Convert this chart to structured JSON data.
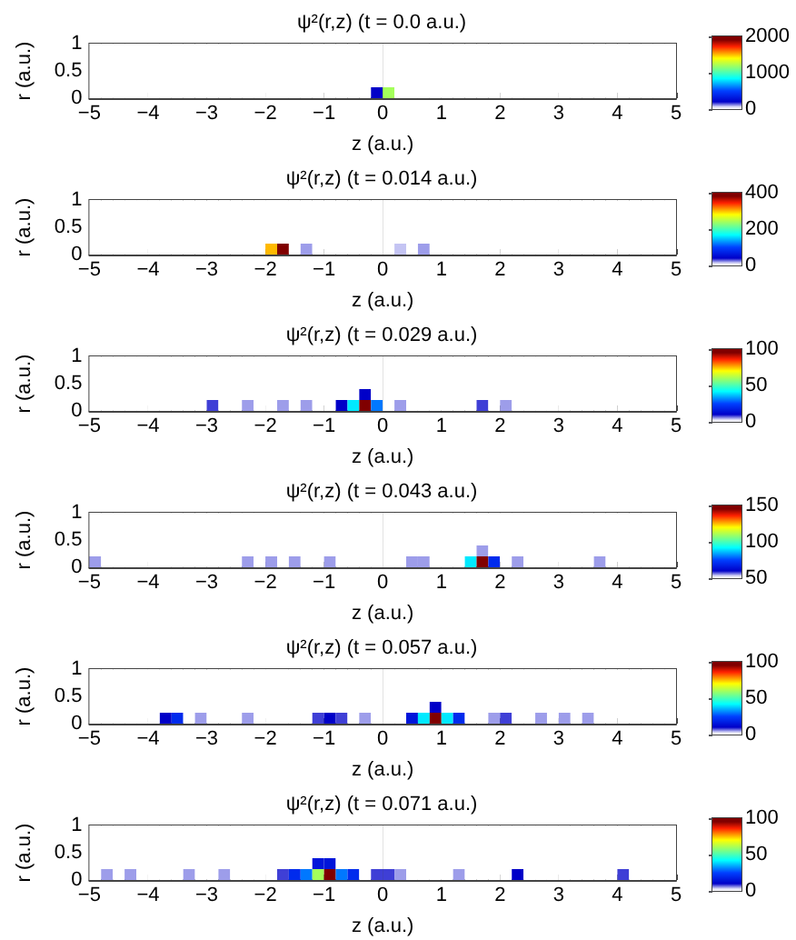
{
  "chart_data": [
    {
      "type": "heatmap",
      "title": "ψ²(r,z) (t = 0.0 a.u.)",
      "xlabel": "z (a.u.)",
      "ylabel": "r (a.u.)",
      "xlim": [
        -5,
        5
      ],
      "ylim": [
        0,
        1
      ],
      "xticks": [
        -5,
        -4,
        -3,
        -2,
        -1,
        0,
        1,
        2,
        3,
        4,
        5
      ],
      "yticks": [
        0,
        0.5,
        1
      ],
      "clim": [
        0,
        2000
      ],
      "cticks": [
        0,
        1000,
        2000
      ],
      "cells": [
        [
          0,
          0,
          0,
          0,
          0,
          0,
          0,
          0,
          0,
          0,
          0,
          0,
          0,
          0,
          0,
          0,
          0,
          0,
          0,
          0,
          0,
          0,
          0,
          0,
          0,
          0,
          0,
          0,
          0,
          0,
          0,
          0,
          0,
          0,
          0,
          0,
          0,
          0,
          0,
          0,
          0,
          0,
          0,
          0,
          0,
          0,
          0,
          0,
          0,
          0
        ],
        [
          0,
          0,
          0,
          0,
          0,
          0,
          0,
          0,
          0,
          0,
          0,
          0,
          0,
          0,
          0,
          0,
          0,
          0,
          0,
          0,
          0,
          0,
          0,
          0,
          0,
          0,
          0,
          0,
          0,
          0,
          0,
          0,
          0,
          0,
          0,
          0,
          0,
          0,
          0,
          0,
          0,
          0,
          0,
          0,
          0,
          0,
          0,
          0,
          0,
          0
        ],
        [
          0,
          0,
          0,
          0,
          0,
          0,
          0,
          0,
          0,
          0,
          0,
          0,
          0,
          0,
          0,
          0,
          0,
          0,
          0,
          0,
          0,
          0,
          0,
          0,
          0,
          0,
          0,
          0,
          0,
          0,
          0,
          0,
          0,
          0,
          0,
          0,
          0,
          0,
          0,
          0,
          0,
          0,
          0,
          0,
          0,
          0,
          0,
          0,
          0,
          0
        ],
        [
          0,
          0,
          0,
          0,
          0,
          0,
          0,
          0,
          0,
          0,
          0,
          0,
          0,
          0,
          0,
          0,
          0,
          0,
          0,
          0,
          0,
          0,
          0,
          0,
          0,
          0,
          0,
          0,
          0,
          0,
          0,
          0,
          0,
          0,
          0,
          0,
          0,
          0,
          0,
          0,
          0,
          0,
          0,
          0,
          0,
          0,
          0,
          0,
          0,
          0
        ],
        [
          0,
          0,
          0,
          0,
          0,
          0,
          0,
          0,
          0,
          0,
          0,
          0,
          0,
          0,
          0,
          0,
          0,
          0,
          0,
          0,
          0,
          0,
          0,
          0,
          200,
          1200,
          0,
          0,
          0,
          0,
          0,
          0,
          0,
          0,
          0,
          0,
          0,
          0,
          0,
          0,
          0,
          0,
          0,
          0,
          0,
          0,
          0,
          0,
          0,
          0
        ]
      ]
    },
    {
      "type": "heatmap",
      "title": "ψ²(r,z) (t = 0.014 a.u.)",
      "xlabel": "z (a.u.)",
      "ylabel": "r (a.u.)",
      "xlim": [
        -5,
        5
      ],
      "ylim": [
        0,
        1
      ],
      "xticks": [
        -5,
        -4,
        -3,
        -2,
        -1,
        0,
        1,
        2,
        3,
        4,
        5
      ],
      "yticks": [
        0,
        0.5,
        1
      ],
      "clim": [
        0,
        400
      ],
      "cticks": [
        0,
        200,
        400
      ],
      "cells": [
        [
          0,
          0,
          0,
          0,
          0,
          0,
          0,
          0,
          0,
          0,
          0,
          0,
          0,
          0,
          0,
          0,
          0,
          0,
          0,
          0,
          0,
          0,
          0,
          0,
          0,
          0,
          0,
          0,
          0,
          0,
          0,
          0,
          0,
          0,
          0,
          0,
          0,
          0,
          0,
          0,
          0,
          0,
          0,
          0,
          0,
          0,
          0,
          0,
          0,
          0
        ],
        [
          0,
          0,
          0,
          0,
          0,
          0,
          0,
          0,
          0,
          0,
          0,
          0,
          0,
          0,
          0,
          0,
          0,
          0,
          0,
          0,
          0,
          0,
          0,
          0,
          0,
          0,
          0,
          0,
          0,
          0,
          0,
          0,
          0,
          0,
          0,
          0,
          0,
          0,
          0,
          0,
          0,
          0,
          0,
          0,
          0,
          0,
          0,
          0,
          0,
          0
        ],
        [
          0,
          0,
          0,
          0,
          0,
          0,
          0,
          0,
          0,
          0,
          0,
          0,
          0,
          0,
          0,
          0,
          0,
          0,
          0,
          0,
          0,
          0,
          0,
          0,
          0,
          0,
          0,
          0,
          0,
          0,
          0,
          0,
          0,
          0,
          0,
          0,
          0,
          0,
          0,
          0,
          0,
          0,
          0,
          0,
          0,
          0,
          0,
          0,
          0,
          0
        ],
        [
          0,
          0,
          0,
          0,
          0,
          0,
          0,
          0,
          0,
          0,
          0,
          0,
          0,
          0,
          0,
          0,
          0,
          0,
          0,
          0,
          0,
          0,
          0,
          0,
          0,
          0,
          0,
          0,
          0,
          0,
          0,
          0,
          0,
          0,
          0,
          0,
          0,
          0,
          0,
          0,
          0,
          0,
          0,
          0,
          0,
          0,
          0,
          0,
          0,
          0
        ],
        [
          0,
          0,
          0,
          0,
          0,
          0,
          0,
          0,
          0,
          0,
          0,
          0,
          0,
          0,
          0,
          300,
          400,
          0,
          20,
          0,
          0,
          0,
          0,
          0,
          0,
          0,
          15,
          0,
          20,
          0,
          0,
          0,
          0,
          0,
          0,
          0,
          0,
          0,
          0,
          0,
          0,
          0,
          0,
          0,
          0,
          0,
          0,
          0,
          0,
          0
        ]
      ]
    },
    {
      "type": "heatmap",
      "title": "ψ²(r,z) (t = 0.029 a.u.)",
      "xlabel": "z (a.u.)",
      "ylabel": "r (a.u.)",
      "xlim": [
        -5,
        5
      ],
      "ylim": [
        0,
        1
      ],
      "xticks": [
        -5,
        -4,
        -3,
        -2,
        -1,
        0,
        1,
        2,
        3,
        4,
        5
      ],
      "yticks": [
        0,
        0.5,
        1
      ],
      "clim": [
        0,
        100
      ],
      "cticks": [
        0,
        50,
        100
      ],
      "cells": [
        [
          0,
          0,
          0,
          0,
          0,
          0,
          0,
          0,
          0,
          0,
          0,
          0,
          0,
          0,
          0,
          0,
          0,
          0,
          0,
          0,
          0,
          0,
          0,
          0,
          0,
          0,
          0,
          0,
          0,
          0,
          0,
          0,
          0,
          0,
          0,
          0,
          0,
          0,
          0,
          0,
          0,
          0,
          0,
          0,
          0,
          0,
          0,
          0,
          0,
          0
        ],
        [
          0,
          0,
          0,
          0,
          0,
          0,
          0,
          0,
          0,
          0,
          0,
          0,
          0,
          0,
          0,
          0,
          0,
          0,
          0,
          0,
          0,
          0,
          0,
          0,
          0,
          0,
          0,
          0,
          0,
          0,
          0,
          0,
          0,
          0,
          0,
          0,
          0,
          0,
          0,
          0,
          0,
          0,
          0,
          0,
          0,
          0,
          0,
          0,
          0,
          0
        ],
        [
          0,
          0,
          0,
          0,
          0,
          0,
          0,
          0,
          0,
          0,
          0,
          0,
          0,
          0,
          0,
          0,
          0,
          0,
          0,
          0,
          0,
          0,
          0,
          0,
          0,
          0,
          0,
          0,
          0,
          0,
          0,
          0,
          0,
          0,
          0,
          0,
          0,
          0,
          0,
          0,
          0,
          0,
          0,
          0,
          0,
          0,
          0,
          0,
          0,
          0
        ],
        [
          0,
          0,
          0,
          0,
          0,
          0,
          0,
          0,
          0,
          0,
          0,
          0,
          0,
          0,
          0,
          0,
          0,
          0,
          0,
          0,
          0,
          0,
          0,
          10,
          0,
          0,
          0,
          0,
          0,
          0,
          0,
          0,
          0,
          0,
          0,
          0,
          0,
          0,
          0,
          0,
          0,
          0,
          0,
          0,
          0,
          0,
          0,
          0,
          0,
          0
        ],
        [
          0,
          0,
          0,
          0,
          0,
          0,
          0,
          0,
          0,
          0,
          8,
          0,
          0,
          5,
          0,
          0,
          5,
          0,
          5,
          0,
          0,
          10,
          40,
          100,
          30,
          0,
          5,
          0,
          0,
          0,
          0,
          0,
          0,
          8,
          0,
          5,
          0,
          0,
          0,
          0,
          0,
          0,
          0,
          0,
          0,
          0,
          0,
          0,
          0,
          0
        ]
      ]
    },
    {
      "type": "heatmap",
      "title": "ψ²(r,z) (t = 0.043 a.u.)",
      "xlabel": "z (a.u.)",
      "ylabel": "r (a.u.)",
      "xlim": [
        -5,
        5
      ],
      "ylim": [
        0,
        1
      ],
      "xticks": [
        -5,
        -4,
        -3,
        -2,
        -1,
        0,
        1,
        2,
        3,
        4,
        5
      ],
      "yticks": [
        0,
        0.5,
        1
      ],
      "clim": [
        50,
        150
      ],
      "cticks": [
        50,
        100,
        150
      ],
      "cells": [
        [
          50,
          50,
          50,
          50,
          50,
          50,
          50,
          50,
          50,
          50,
          50,
          50,
          50,
          50,
          50,
          50,
          50,
          50,
          50,
          50,
          50,
          50,
          50,
          50,
          50,
          50,
          50,
          50,
          50,
          50,
          50,
          50,
          50,
          50,
          50,
          50,
          50,
          50,
          50,
          50,
          50,
          50,
          50,
          50,
          50,
          50,
          50,
          50,
          50,
          50
        ],
        [
          50,
          50,
          50,
          50,
          50,
          50,
          50,
          50,
          50,
          50,
          50,
          50,
          50,
          50,
          50,
          50,
          50,
          50,
          50,
          50,
          50,
          50,
          50,
          50,
          50,
          50,
          50,
          50,
          50,
          50,
          50,
          50,
          50,
          50,
          50,
          50,
          50,
          50,
          50,
          50,
          50,
          50,
          50,
          50,
          50,
          50,
          50,
          50,
          50,
          50
        ],
        [
          50,
          50,
          50,
          50,
          50,
          50,
          50,
          50,
          50,
          50,
          50,
          50,
          50,
          50,
          50,
          50,
          50,
          50,
          50,
          50,
          50,
          50,
          50,
          50,
          50,
          50,
          50,
          50,
          50,
          50,
          50,
          50,
          50,
          50,
          50,
          50,
          50,
          50,
          50,
          50,
          50,
          50,
          50,
          50,
          50,
          50,
          50,
          50,
          50,
          50
        ],
        [
          50,
          50,
          50,
          50,
          50,
          50,
          50,
          50,
          50,
          50,
          50,
          50,
          50,
          50,
          50,
          50,
          50,
          50,
          50,
          50,
          50,
          50,
          50,
          50,
          50,
          50,
          50,
          50,
          50,
          50,
          50,
          50,
          50,
          55,
          50,
          50,
          50,
          50,
          50,
          50,
          50,
          50,
          50,
          50,
          50,
          50,
          50,
          50,
          50,
          50
        ],
        [
          55,
          50,
          50,
          50,
          50,
          50,
          50,
          50,
          50,
          50,
          50,
          50,
          50,
          55,
          50,
          55,
          50,
          55,
          50,
          50,
          55,
          50,
          50,
          50,
          50,
          50,
          50,
          55,
          55,
          50,
          50,
          50,
          90,
          150,
          70,
          50,
          55,
          50,
          50,
          50,
          50,
          50,
          50,
          55,
          50,
          50,
          50,
          50,
          50,
          50
        ]
      ]
    },
    {
      "type": "heatmap",
      "title": "ψ²(r,z) (t = 0.057 a.u.)",
      "xlabel": "z (a.u.)",
      "ylabel": "r (a.u.)",
      "xlim": [
        -5,
        5
      ],
      "ylim": [
        0,
        1
      ],
      "xticks": [
        -5,
        -4,
        -3,
        -2,
        -1,
        0,
        1,
        2,
        3,
        4,
        5
      ],
      "yticks": [
        0,
        0.5,
        1
      ],
      "clim": [
        0,
        100
      ],
      "cticks": [
        0,
        50,
        100
      ],
      "cells": [
        [
          0,
          0,
          0,
          0,
          0,
          0,
          0,
          0,
          0,
          0,
          0,
          0,
          0,
          0,
          0,
          0,
          0,
          0,
          0,
          0,
          0,
          0,
          0,
          0,
          0,
          0,
          0,
          0,
          0,
          0,
          0,
          0,
          0,
          0,
          0,
          0,
          0,
          0,
          0,
          0,
          0,
          0,
          0,
          0,
          0,
          0,
          0,
          0,
          0,
          0
        ],
        [
          0,
          0,
          0,
          0,
          0,
          0,
          0,
          0,
          0,
          0,
          0,
          0,
          0,
          0,
          0,
          0,
          0,
          0,
          0,
          0,
          0,
          0,
          0,
          0,
          0,
          0,
          0,
          0,
          0,
          0,
          0,
          0,
          0,
          0,
          0,
          0,
          0,
          0,
          0,
          0,
          0,
          0,
          0,
          0,
          0,
          0,
          0,
          0,
          0,
          0
        ],
        [
          0,
          0,
          0,
          0,
          0,
          0,
          0,
          0,
          0,
          0,
          0,
          0,
          0,
          0,
          0,
          0,
          0,
          0,
          0,
          0,
          0,
          0,
          0,
          0,
          0,
          0,
          0,
          0,
          0,
          0,
          0,
          0,
          0,
          0,
          0,
          0,
          0,
          0,
          0,
          0,
          0,
          0,
          0,
          0,
          0,
          0,
          0,
          0,
          0,
          0
        ],
        [
          0,
          0,
          0,
          0,
          0,
          0,
          0,
          0,
          0,
          0,
          0,
          0,
          0,
          0,
          0,
          0,
          0,
          0,
          0,
          0,
          0,
          0,
          0,
          0,
          0,
          0,
          0,
          0,
          0,
          10,
          0,
          0,
          0,
          0,
          0,
          0,
          0,
          0,
          0,
          0,
          0,
          0,
          0,
          0,
          0,
          0,
          0,
          0,
          0,
          0
        ],
        [
          0,
          0,
          0,
          0,
          0,
          0,
          10,
          20,
          0,
          5,
          0,
          0,
          0,
          5,
          0,
          0,
          0,
          0,
          0,
          8,
          10,
          8,
          0,
          5,
          0,
          0,
          0,
          15,
          40,
          100,
          40,
          20,
          0,
          0,
          5,
          8,
          0,
          0,
          5,
          0,
          5,
          0,
          5,
          0,
          0,
          0,
          0,
          0,
          0,
          0
        ]
      ]
    },
    {
      "type": "heatmap",
      "title": "ψ²(r,z) (t = 0.071 a.u.)",
      "xlabel": "z (a.u.)",
      "ylabel": "r (a.u.)",
      "xlim": [
        -5,
        5
      ],
      "ylim": [
        0,
        1
      ],
      "xticks": [
        -5,
        -4,
        -3,
        -2,
        -1,
        0,
        1,
        2,
        3,
        4,
        5
      ],
      "yticks": [
        0,
        0.5,
        1
      ],
      "clim": [
        0,
        100
      ],
      "cticks": [
        0,
        50,
        100
      ],
      "cells": [
        [
          0,
          0,
          0,
          0,
          0,
          0,
          0,
          0,
          0,
          0,
          0,
          0,
          0,
          0,
          0,
          0,
          0,
          0,
          0,
          0,
          0,
          0,
          0,
          0,
          0,
          0,
          0,
          0,
          0,
          0,
          0,
          0,
          0,
          0,
          0,
          0,
          0,
          0,
          0,
          0,
          0,
          0,
          0,
          0,
          0,
          0,
          0,
          0,
          0,
          0
        ],
        [
          0,
          0,
          0,
          0,
          0,
          0,
          0,
          0,
          0,
          0,
          0,
          0,
          0,
          0,
          0,
          0,
          0,
          0,
          0,
          0,
          0,
          0,
          0,
          0,
          0,
          0,
          0,
          0,
          0,
          0,
          0,
          0,
          0,
          0,
          0,
          0,
          0,
          0,
          0,
          0,
          0,
          0,
          0,
          0,
          0,
          0,
          0,
          0,
          0,
          0
        ],
        [
          0,
          0,
          0,
          0,
          0,
          0,
          0,
          0,
          0,
          0,
          0,
          0,
          0,
          0,
          0,
          0,
          0,
          0,
          0,
          0,
          0,
          0,
          0,
          0,
          0,
          0,
          0,
          0,
          0,
          0,
          0,
          0,
          0,
          0,
          0,
          0,
          0,
          0,
          0,
          0,
          0,
          0,
          0,
          0,
          0,
          0,
          0,
          0,
          0,
          0
        ],
        [
          0,
          0,
          0,
          0,
          0,
          0,
          0,
          0,
          0,
          0,
          0,
          0,
          0,
          0,
          0,
          0,
          0,
          0,
          0,
          15,
          15,
          0,
          0,
          0,
          0,
          0,
          0,
          0,
          0,
          0,
          0,
          0,
          0,
          0,
          0,
          0,
          0,
          0,
          0,
          0,
          0,
          0,
          0,
          0,
          0,
          0,
          0,
          0,
          0,
          0
        ],
        [
          0,
          5,
          0,
          5,
          0,
          0,
          0,
          0,
          5,
          0,
          0,
          5,
          0,
          0,
          0,
          0,
          8,
          20,
          30,
          60,
          100,
          30,
          20,
          0,
          8,
          8,
          5,
          0,
          0,
          0,
          0,
          5,
          0,
          0,
          0,
          0,
          10,
          0,
          0,
          0,
          0,
          0,
          0,
          0,
          0,
          8,
          0,
          0,
          0,
          0
        ]
      ]
    }
  ]
}
